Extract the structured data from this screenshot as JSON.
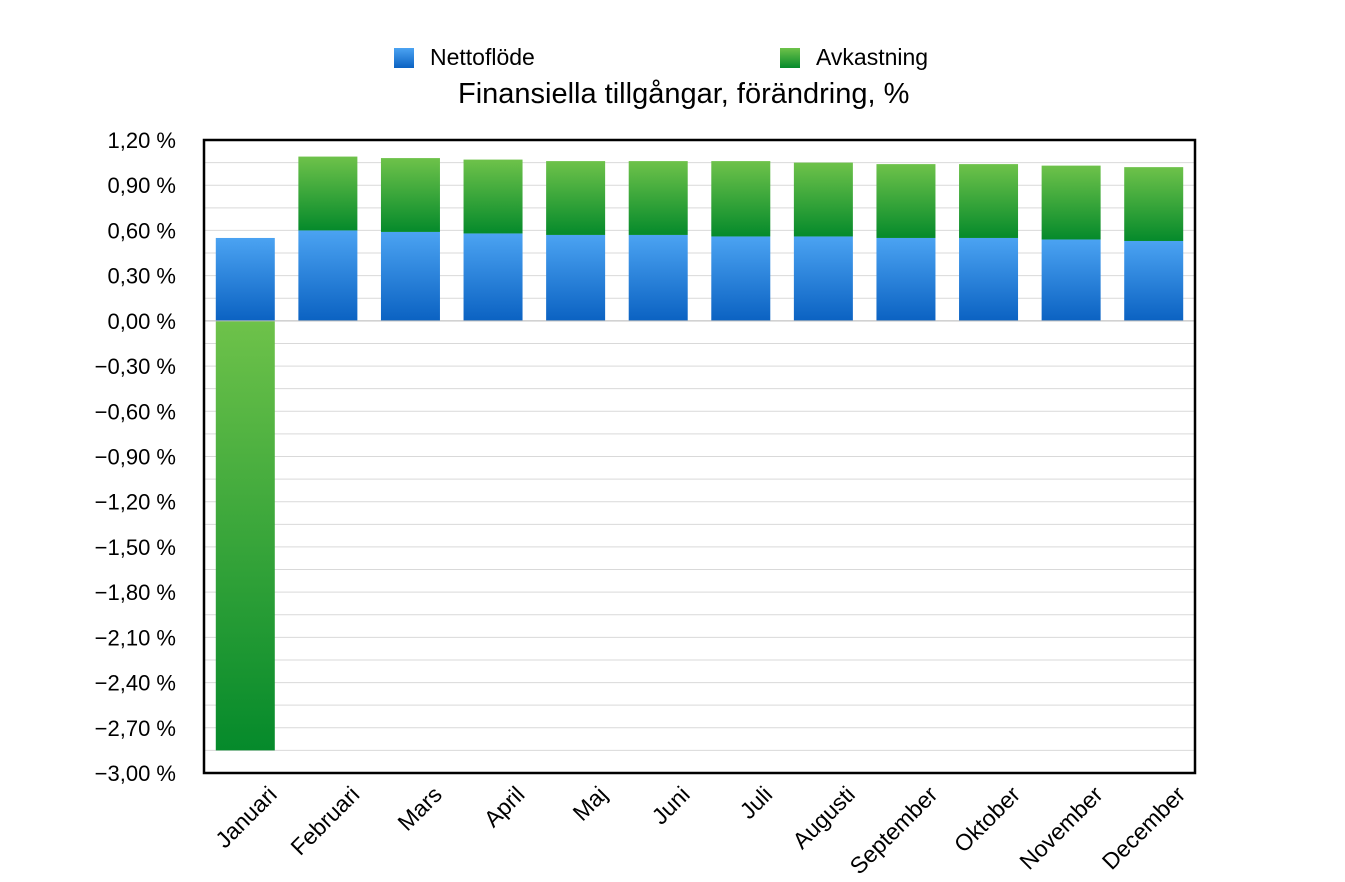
{
  "chart_data": {
    "type": "bar",
    "stacked": true,
    "title": "Finansiella tillgångar, förändring, %",
    "xlabel": "",
    "ylabel": "",
    "categories": [
      "Januari",
      "Februari",
      "Mars",
      "April",
      "Maj",
      "Juni",
      "Juli",
      "Augusti",
      "September",
      "Oktober",
      "November",
      "December"
    ],
    "series": [
      {
        "name": "Nettoflöde",
        "color": "#1f73d1",
        "values": [
          0.55,
          0.6,
          0.59,
          0.58,
          0.57,
          0.57,
          0.56,
          0.56,
          0.55,
          0.55,
          0.54,
          0.53
        ]
      },
      {
        "name": "Avkastning",
        "color": "#2e9a32",
        "values": [
          -2.85,
          0.49,
          0.49,
          0.49,
          0.49,
          0.49,
          0.5,
          0.49,
          0.49,
          0.49,
          0.49,
          0.49
        ]
      }
    ],
    "ylim": [
      -3.0,
      1.2
    ],
    "yticks": [
      -3.0,
      -2.7,
      -2.4,
      -2.1,
      -1.8,
      -1.5,
      -1.2,
      -0.9,
      -0.6,
      -0.3,
      0.0,
      0.3,
      0.6,
      0.9,
      1.2
    ],
    "ytick_labels": [
      "−3,00 %",
      "−2,70 %",
      "−2,40 %",
      "−2,10 %",
      "−1,80 %",
      "−1,50 %",
      "−1,20 %",
      "−0,90 %",
      "−0,60 %",
      "−0,30 %",
      "0,00 %",
      "0,30 %",
      "0,60 %",
      "0,90 %",
      "1,20 %"
    ],
    "grid": true,
    "legend_position": "top"
  }
}
